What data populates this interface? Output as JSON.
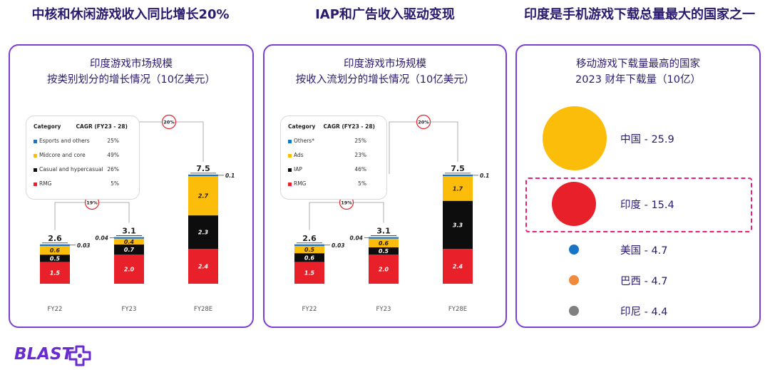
{
  "headlines": [
    "中核和休闲游戏收入同比增长20%",
    "IAP和广告收入驱动变现",
    "印度是手机游戏下载总量最大的国家之一"
  ],
  "brand": {
    "logo_text": "BLAST",
    "accent": "#7b3fd1"
  },
  "chart_data": [
    {
      "type": "bar",
      "stacked": true,
      "title_lines": [
        "印度游戏市场规模",
        "按类别划分的增长情况（10亿美元）"
      ],
      "categories": [
        "FY22",
        "FY23",
        "FY28E"
      ],
      "totals": [
        "2.6",
        "3.1",
        "7.5"
      ],
      "series": [
        {
          "name": "RMG",
          "color": "#e8202a",
          "values": [
            1.5,
            2.0,
            2.4
          ],
          "labels": [
            "1.5",
            "2.0",
            "2.4"
          ]
        },
        {
          "name": "Casual and hypercasual",
          "color": "#0d0d0d",
          "values": [
            0.5,
            0.7,
            2.3
          ],
          "labels": [
            "0.5",
            "0.7",
            "2.3"
          ]
        },
        {
          "name": "Midcore and core",
          "color": "#fbbd0a",
          "values": [
            0.6,
            0.4,
            2.7
          ],
          "labels": [
            "0.6",
            "0.4",
            "2.7"
          ]
        },
        {
          "name": "Esports and others",
          "color": "#1874c6",
          "values": [
            0.03,
            0.04,
            0.1
          ],
          "labels": [
            "0.03",
            "0.04",
            "0.1"
          ]
        }
      ],
      "legend": {
        "header_category": "Category",
        "header_cagr": "CAGR (FY23 - 28)",
        "rows": [
          {
            "name": "Esports and others",
            "cagr": "25%",
            "color": "#1874c6"
          },
          {
            "name": "Midcore and core",
            "cagr": "49%",
            "color": "#fbbd0a"
          },
          {
            "name": "Casual and hypercasual",
            "cagr": "26%",
            "color": "#0d0d0d"
          },
          {
            "name": "RMG",
            "cagr": "5%",
            "color": "#e8202a"
          }
        ]
      },
      "growth_annotations": [
        "19%",
        "20%"
      ],
      "ylim": [
        0,
        8
      ]
    },
    {
      "type": "bar",
      "stacked": true,
      "title_lines": [
        "印度游戏市场规模",
        "按收入流划分的增长情况（10亿美元）"
      ],
      "categories": [
        "FY22",
        "FY23",
        "FY28E"
      ],
      "totals": [
        "2.6",
        "3.1",
        "7.5"
      ],
      "series": [
        {
          "name": "RMG",
          "color": "#e8202a",
          "values": [
            1.5,
            2.0,
            2.4
          ],
          "labels": [
            "1.5",
            "2.0",
            "2.4"
          ]
        },
        {
          "name": "IAP",
          "color": "#0d0d0d",
          "values": [
            0.6,
            0.5,
            3.3
          ],
          "labels": [
            "0.6",
            "0.5",
            "3.3"
          ]
        },
        {
          "name": "Ads",
          "color": "#fbbd0a",
          "values": [
            0.5,
            0.6,
            1.7
          ],
          "labels": [
            "0.5",
            "0.6",
            "1.7"
          ]
        },
        {
          "name": "Others*",
          "color": "#1874c6",
          "values": [
            0.03,
            0.04,
            0.1
          ],
          "labels": [
            "0.03",
            "0.04",
            "0.1"
          ]
        }
      ],
      "legend": {
        "header_category": "Category",
        "header_cagr": "CAGR (FY23 - 28)",
        "rows": [
          {
            "name": "Others*",
            "cagr": "25%",
            "color": "#1874c6"
          },
          {
            "name": "Ads",
            "cagr": "23%",
            "color": "#fbbd0a"
          },
          {
            "name": "IAP",
            "cagr": "46%",
            "color": "#0d0d0d"
          },
          {
            "name": "RMG",
            "cagr": "5%",
            "color": "#e8202a"
          }
        ]
      },
      "growth_annotations": [
        "19%",
        "20%"
      ],
      "ylim": [
        0,
        8
      ]
    },
    {
      "type": "bubble",
      "title_lines": [
        "移动游戏下载量最高的国家",
        "2023 财年下载量（10亿）"
      ],
      "countries": [
        "中国",
        "印度",
        "美国",
        "巴西",
        "印尼"
      ],
      "values": [
        25.9,
        15.4,
        4.7,
        4.7,
        4.4
      ],
      "labels": [
        "中国 - 25.9",
        "印度 - 15.4",
        "美国 - 4.7",
        "巴西 - 4.7",
        "印尼 - 4.4"
      ],
      "colors": [
        "#fbbd0a",
        "#e8202a",
        "#1874c6",
        "#f08a3c",
        "#808080"
      ],
      "highlighted": "印度"
    }
  ]
}
